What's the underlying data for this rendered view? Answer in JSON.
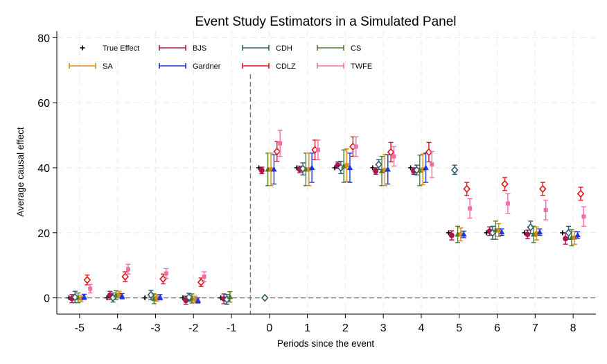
{
  "chart_data": {
    "type": "scatter",
    "title": "Event Study Estimators in a Simulated Panel",
    "xlabel": "Periods since the event",
    "ylabel": "Average causal effect",
    "x_ticks": [
      -5,
      -4,
      -3,
      -2,
      -1,
      0,
      1,
      2,
      3,
      4,
      5,
      6,
      7,
      8
    ],
    "y_ticks": [
      0,
      20,
      40,
      60,
      80
    ],
    "xlim": [
      -5.6,
      8.6
    ],
    "ylim": [
      -5,
      82
    ],
    "grid": true,
    "event_line_x": -0.5,
    "zero_line_y": 0,
    "legend_position": "top-left",
    "series": [
      {
        "name": "True Effect",
        "color": "#000000",
        "marker": "plus",
        "offset": -0.28,
        "points": [
          {
            "x": -5,
            "y": 0,
            "lo": 0,
            "hi": 0
          },
          {
            "x": -4,
            "y": 0,
            "lo": 0,
            "hi": 0
          },
          {
            "x": -3,
            "y": 0,
            "lo": 0,
            "hi": 0
          },
          {
            "x": -2,
            "y": 0,
            "lo": 0,
            "hi": 0
          },
          {
            "x": -1,
            "y": 0,
            "lo": 0,
            "hi": 0
          },
          {
            "x": 0,
            "y": 40,
            "lo": 40,
            "hi": 40
          },
          {
            "x": 1,
            "y": 40,
            "lo": 40,
            "hi": 40
          },
          {
            "x": 2,
            "y": 40,
            "lo": 40,
            "hi": 40
          },
          {
            "x": 3,
            "y": 40,
            "lo": 40,
            "hi": 40
          },
          {
            "x": 4,
            "y": 40,
            "lo": 40,
            "hi": 40
          },
          {
            "x": 5,
            "y": 20,
            "lo": 20,
            "hi": 20
          },
          {
            "x": 6,
            "y": 20,
            "lo": 20,
            "hi": 20
          },
          {
            "x": 7,
            "y": 20,
            "lo": 20,
            "hi": 20
          },
          {
            "x": 8,
            "y": 20,
            "lo": 20,
            "hi": 20
          }
        ]
      },
      {
        "name": "BJS",
        "color": "#b0124a",
        "marker": "circle",
        "offset": -0.2,
        "points": [
          {
            "x": -5,
            "y": -0.2,
            "lo": -1.5,
            "hi": 1.0
          },
          {
            "x": -4,
            "y": 0.8,
            "lo": -0.5,
            "hi": 2.0
          },
          {
            "x": -2,
            "y": -0.8,
            "lo": -2.0,
            "hi": 0.5
          },
          {
            "x": -1,
            "y": -0.3,
            "lo": -1.8,
            "hi": 1.2
          },
          {
            "x": 0,
            "y": 39.2,
            "lo": 38.2,
            "hi": 40.2
          },
          {
            "x": 1,
            "y": 39.5,
            "lo": 38.5,
            "hi": 40.5
          },
          {
            "x": 2,
            "y": 40.8,
            "lo": 39.8,
            "hi": 41.8
          },
          {
            "x": 3,
            "y": 39.0,
            "lo": 38.0,
            "hi": 40.0
          },
          {
            "x": 4,
            "y": 39.0,
            "lo": 38.0,
            "hi": 40.0
          },
          {
            "x": 5,
            "y": 19.2,
            "lo": 17.8,
            "hi": 20.6
          },
          {
            "x": 6,
            "y": 20.5,
            "lo": 19.2,
            "hi": 21.8
          },
          {
            "x": 7,
            "y": 19.5,
            "lo": 18.2,
            "hi": 20.8
          },
          {
            "x": 8,
            "y": 18.2,
            "lo": 16.5,
            "hi": 19.9
          }
        ]
      },
      {
        "name": "CDH",
        "color": "#2f5a73",
        "marker": "diamond",
        "offset": -0.12,
        "points": [
          {
            "x": -5,
            "y": 0.2,
            "lo": -1.5,
            "hi": 2.0
          },
          {
            "x": -4,
            "y": 0,
            "lo": -1.3,
            "hi": 1.5
          },
          {
            "x": -3,
            "y": 0.9,
            "lo": -0.6,
            "hi": 2.3
          },
          {
            "x": -2,
            "y": 0.2,
            "lo": -1.0,
            "hi": 1.4
          },
          {
            "x": -1,
            "y": -0.5,
            "lo": -2.0,
            "hi": 1.0
          },
          {
            "x": 0,
            "y": 0,
            "lo": 0,
            "hi": 0
          },
          {
            "x": 1,
            "y": 39.7,
            "lo": 37.8,
            "hi": 41.5
          },
          {
            "x": 2,
            "y": 40.0,
            "lo": 38.2,
            "hi": 42.0
          },
          {
            "x": 3,
            "y": 41.0,
            "lo": 39.5,
            "hi": 42.5
          },
          {
            "x": 4,
            "y": 39.3,
            "lo": 37.8,
            "hi": 40.8
          },
          {
            "x": 5,
            "y": 39.3,
            "lo": 38.0,
            "hi": 40.8
          },
          {
            "x": 6,
            "y": 20.0,
            "lo": 18.0,
            "hi": 22.0
          },
          {
            "x": 7,
            "y": 21.7,
            "lo": 19.8,
            "hi": 23.6
          },
          {
            "x": 8,
            "y": 20.0,
            "lo": 18.0,
            "hi": 22.0
          }
        ]
      },
      {
        "name": "CS",
        "color": "#4d7a2a",
        "marker": "triangle",
        "offset": -0.04,
        "points": [
          {
            "x": -5,
            "y": 0,
            "lo": -1.5,
            "hi": 1.5
          },
          {
            "x": -4,
            "y": 0.8,
            "lo": -0.5,
            "hi": 2.2
          },
          {
            "x": -3,
            "y": -0.3,
            "lo": -1.8,
            "hi": 1.2
          },
          {
            "x": -2,
            "y": -0.2,
            "lo": -1.6,
            "hi": 1.2
          },
          {
            "x": -1,
            "y": 0.3,
            "lo": -1.3,
            "hi": 1.9
          },
          {
            "x": 0,
            "y": 39.5,
            "lo": 34.5,
            "hi": 44.5
          },
          {
            "x": 1,
            "y": 39.5,
            "lo": 34.5,
            "hi": 44.5
          },
          {
            "x": 2,
            "y": 40.5,
            "lo": 35.5,
            "hi": 45.5
          },
          {
            "x": 3,
            "y": 39.0,
            "lo": 34.5,
            "hi": 43.5
          },
          {
            "x": 4,
            "y": 39.2,
            "lo": 34.5,
            "hi": 43.9
          },
          {
            "x": 5,
            "y": 19.5,
            "lo": 17.0,
            "hi": 22.0
          },
          {
            "x": 6,
            "y": 20.8,
            "lo": 18.0,
            "hi": 23.6
          },
          {
            "x": 7,
            "y": 19.5,
            "lo": 17.0,
            "hi": 22.0
          },
          {
            "x": 8,
            "y": 18.5,
            "lo": 16.0,
            "hi": 21.0
          }
        ]
      },
      {
        "name": "SA",
        "color": "#d98c12",
        "marker": "square",
        "offset": 0.04,
        "points": [
          {
            "x": -5,
            "y": -0.2,
            "lo": -1.2,
            "hi": 0.8
          },
          {
            "x": -4,
            "y": 1.0,
            "lo": 0.0,
            "hi": 2.0
          },
          {
            "x": -3,
            "y": 0,
            "lo": -1.0,
            "hi": 1.0
          },
          {
            "x": -2,
            "y": -0.5,
            "lo": -1.5,
            "hi": 0.5
          },
          {
            "x": 0,
            "y": 39.5,
            "lo": 34.5,
            "hi": 44.5
          },
          {
            "x": 1,
            "y": 39.5,
            "lo": 34.5,
            "hi": 44.5
          },
          {
            "x": 2,
            "y": 40.8,
            "lo": 35.8,
            "hi": 45.8
          },
          {
            "x": 3,
            "y": 39.3,
            "lo": 34.5,
            "hi": 44.1
          },
          {
            "x": 4,
            "y": 39.5,
            "lo": 34.8,
            "hi": 44.2
          },
          {
            "x": 5,
            "y": 19.5,
            "lo": 17.5,
            "hi": 21.5
          },
          {
            "x": 6,
            "y": 20.8,
            "lo": 18.8,
            "hi": 22.8
          },
          {
            "x": 7,
            "y": 19.8,
            "lo": 17.8,
            "hi": 21.8
          },
          {
            "x": 8,
            "y": 18.5,
            "lo": 16.5,
            "hi": 20.5
          }
        ]
      },
      {
        "name": "Gardner",
        "color": "#1a35e0",
        "marker": "triangle",
        "offset": 0.12,
        "points": [
          {
            "x": -5,
            "y": 0.3,
            "lo": -0.5,
            "hi": 1.1
          },
          {
            "x": -4,
            "y": 0.5,
            "lo": -0.3,
            "hi": 1.3
          },
          {
            "x": -3,
            "y": 0.2,
            "lo": -0.6,
            "hi": 1.0
          },
          {
            "x": -2,
            "y": -0.8,
            "lo": -1.6,
            "hi": 0.0
          },
          {
            "x": 0,
            "y": 39.5,
            "lo": 35.0,
            "hi": 44.0
          },
          {
            "x": 1,
            "y": 40.0,
            "lo": 35.5,
            "hi": 44.5
          },
          {
            "x": 2,
            "y": 40.0,
            "lo": 35.5,
            "hi": 44.5
          },
          {
            "x": 3,
            "y": 39.5,
            "lo": 35.0,
            "hi": 44.0
          },
          {
            "x": 4,
            "y": 40.0,
            "lo": 35.5,
            "hi": 44.5
          },
          {
            "x": 5,
            "y": 19.5,
            "lo": 18.5,
            "hi": 20.5
          },
          {
            "x": 6,
            "y": 20.2,
            "lo": 19.2,
            "hi": 21.2
          },
          {
            "x": 7,
            "y": 20.2,
            "lo": 19.2,
            "hi": 21.2
          },
          {
            "x": 8,
            "y": 19.3,
            "lo": 18.3,
            "hi": 20.3
          }
        ]
      },
      {
        "name": "CDLZ",
        "color": "#e0141a",
        "marker": "diamond",
        "offset": 0.2,
        "points": [
          {
            "x": -5,
            "y": 5.5,
            "lo": 4.0,
            "hi": 7.0
          },
          {
            "x": -4,
            "y": 6.5,
            "lo": 5.0,
            "hi": 8.0
          },
          {
            "x": -3,
            "y": 5.8,
            "lo": 4.3,
            "hi": 7.3
          },
          {
            "x": -2,
            "y": 4.8,
            "lo": 3.5,
            "hi": 6.1
          },
          {
            "x": 0,
            "y": 45.0,
            "lo": 42.0,
            "hi": 48.0
          },
          {
            "x": 1,
            "y": 45.5,
            "lo": 42.5,
            "hi": 48.5
          },
          {
            "x": 2,
            "y": 46.5,
            "lo": 43.5,
            "hi": 49.5
          },
          {
            "x": 3,
            "y": 44.8,
            "lo": 41.8,
            "hi": 47.8
          },
          {
            "x": 4,
            "y": 44.8,
            "lo": 41.8,
            "hi": 47.8
          },
          {
            "x": 5,
            "y": 33.5,
            "lo": 31.5,
            "hi": 35.5
          },
          {
            "x": 6,
            "y": 35.0,
            "lo": 33.0,
            "hi": 37.0
          },
          {
            "x": 7,
            "y": 33.5,
            "lo": 31.5,
            "hi": 35.5
          },
          {
            "x": 8,
            "y": 32.0,
            "lo": 30.0,
            "hi": 34.0
          }
        ]
      },
      {
        "name": "TWFE",
        "color": "#f06eaa",
        "marker": "square",
        "offset": 0.28,
        "points": [
          {
            "x": -5,
            "y": 2.8,
            "lo": 1.5,
            "hi": 4.1
          },
          {
            "x": -4,
            "y": 8.8,
            "lo": 7.3,
            "hi": 10.3
          },
          {
            "x": -3,
            "y": 7.5,
            "lo": 6.0,
            "hi": 9.0
          },
          {
            "x": -2,
            "y": 6.5,
            "lo": 5.0,
            "hi": 8.0
          },
          {
            "x": 0,
            "y": 47.5,
            "lo": 43.5,
            "hi": 51.5
          },
          {
            "x": 1,
            "y": 45.5,
            "lo": 42.5,
            "hi": 48.5
          },
          {
            "x": 2,
            "y": 46.5,
            "lo": 43.5,
            "hi": 49.5
          },
          {
            "x": 3,
            "y": 43.5,
            "lo": 40.5,
            "hi": 46.5
          },
          {
            "x": 4,
            "y": 41.0,
            "lo": 37.0,
            "hi": 45.0
          },
          {
            "x": 5,
            "y": 27.5,
            "lo": 24.5,
            "hi": 30.5
          },
          {
            "x": 6,
            "y": 29.0,
            "lo": 26.0,
            "hi": 32.0
          },
          {
            "x": 7,
            "y": 27.0,
            "lo": 24.0,
            "hi": 30.0
          },
          {
            "x": 8,
            "y": 25.0,
            "lo": 22.0,
            "hi": 28.0
          }
        ]
      }
    ]
  }
}
